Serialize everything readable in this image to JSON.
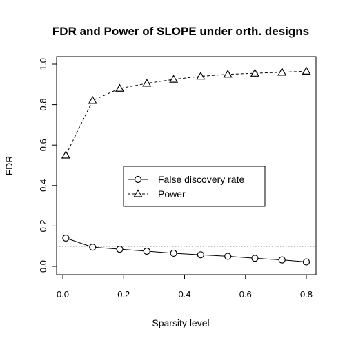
{
  "chart_data": {
    "type": "line",
    "title": "FDR and Power of SLOPE under orth. designs",
    "xlabel": "Sparsity level",
    "ylabel": "FDR",
    "xlim": [
      0,
      0.8
    ],
    "ylim": [
      0,
      1.0
    ],
    "x_ticks": [
      "0.0",
      "0.2",
      "0.4",
      "0.6",
      "0.8"
    ],
    "y_ticks": [
      "0.0",
      "0.2",
      "0.4",
      "0.6",
      "0.8",
      "1.0"
    ],
    "grid": false,
    "legend_position": "center-right",
    "x": [
      0.01,
      0.098,
      0.187,
      0.276,
      0.364,
      0.453,
      0.542,
      0.631,
      0.72,
      0.8
    ],
    "series": [
      {
        "name": "False discovery rate",
        "marker": "circle",
        "line": "solid",
        "values": [
          0.14,
          0.095,
          0.085,
          0.075,
          0.065,
          0.057,
          0.05,
          0.04,
          0.032,
          0.022
        ]
      },
      {
        "name": "Power",
        "marker": "triangle",
        "line": "dashed",
        "values": [
          0.55,
          0.82,
          0.88,
          0.905,
          0.925,
          0.94,
          0.95,
          0.955,
          0.96,
          0.965
        ]
      }
    ],
    "reference_line": {
      "y": 0.1,
      "style": "dotted"
    },
    "colors": {
      "ink": "#000000",
      "background": "#ffffff"
    }
  }
}
